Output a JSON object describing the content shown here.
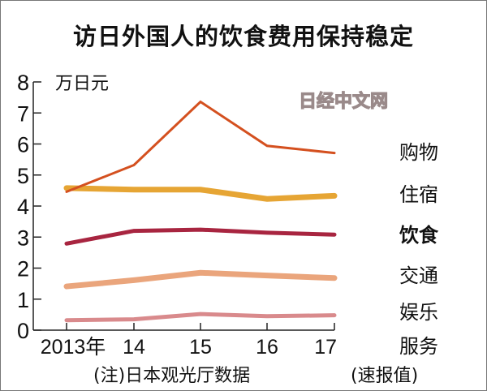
{
  "title": "访日外国人的饮食费用保持稳定",
  "watermark": "日经中文网",
  "footer": {
    "note": "(注)日本观光厅数据",
    "flag": "(速报值)"
  },
  "chart_data": {
    "type": "line",
    "title": "访日外国人的饮食费用保持稳定",
    "ylabel": "万日元",
    "xlabel": "",
    "categories": [
      "2013年",
      "14",
      "15",
      "16",
      "17"
    ],
    "ylim": [
      0,
      8
    ],
    "yticks": [
      "0",
      "1",
      "2",
      "3",
      "4",
      "5",
      "6",
      "7",
      "8"
    ],
    "grid": false,
    "legend": "inline-right",
    "series": [
      {
        "name": "购物",
        "color": "#d4501f",
        "values": [
          4.46,
          5.32,
          7.36,
          5.94,
          5.71
        ]
      },
      {
        "name": "住宿",
        "color": "#e6a534",
        "values": [
          4.58,
          4.53,
          4.53,
          4.23,
          4.33
        ]
      },
      {
        "name": "饮食",
        "color": "#a82540",
        "values": [
          2.79,
          3.2,
          3.24,
          3.14,
          3.08
        ]
      },
      {
        "name": "交通",
        "color": "#eaa57c",
        "values": [
          1.41,
          1.61,
          1.85,
          1.76,
          1.68
        ]
      },
      {
        "name": "娱乐服务",
        "color": "#d98a8c",
        "values": [
          0.32,
          0.35,
          0.52,
          0.45,
          0.48
        ]
      }
    ],
    "series_label_lines": [
      [
        "购物"
      ],
      [
        "住宿"
      ],
      [
        "饮食"
      ],
      [
        "交通"
      ],
      [
        "娱乐",
        "服务"
      ]
    ]
  }
}
